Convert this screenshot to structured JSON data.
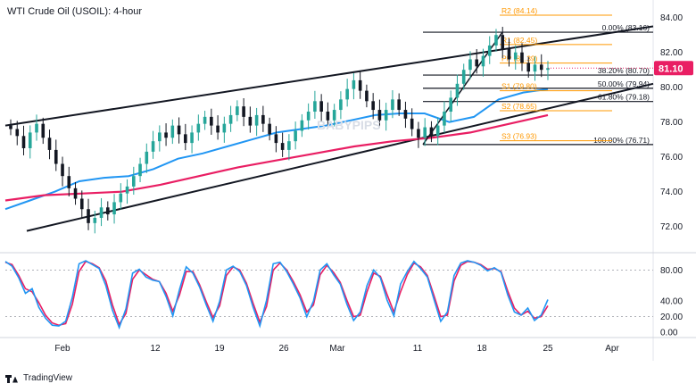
{
  "title": "WTI Crude Oil (USOIL): 4-hour",
  "branding": "TradingView",
  "watermark": "BABYPIPS",
  "colors": {
    "candle_up": "#26a69a",
    "candle_down": "#131722",
    "sma_blue": "#2196f3",
    "sma_magenta": "#e91e63",
    "pivot": "#ff9800",
    "fib": "#131722",
    "stoch_k": "#2196f3",
    "stoch_d": "#e91e63",
    "price_badge": "#e91e63"
  },
  "chart_data": [
    {
      "type": "candlestick",
      "panel": "price",
      "yaxis_ticks": [
        72.0,
        74.0,
        76.0,
        78.0,
        80.0,
        82.0,
        84.0
      ],
      "ylim": [
        70.55,
        84.6
      ],
      "xaxis_ticks": [
        "Feb",
        "12",
        "19",
        "26",
        "Mar",
        "11",
        "18",
        "25",
        "Apr"
      ],
      "last_price": "81.10",
      "candle_closes": [
        77.6,
        77.2,
        76.5,
        77.4,
        77.9,
        77.1,
        76.4,
        75.6,
        74.9,
        74.2,
        73.6,
        73.0,
        72.2,
        72.5,
        73.1,
        72.7,
        73.4,
        73.9,
        74.3,
        74.9,
        75.6,
        76.3,
        76.9,
        77.4,
        77.1,
        77.8,
        77.3,
        76.8,
        77.4,
        77.9,
        78.3,
        77.8,
        77.4,
        77.9,
        78.4,
        78.9,
        78.3,
        77.8,
        78.4,
        77.9,
        77.3,
        76.8,
        76.4,
        76.9,
        77.5,
        78.1,
        78.6,
        79.2,
        78.6,
        78.1,
        78.7,
        79.3,
        79.9,
        80.4,
        79.8,
        79.2,
        78.7,
        78.1,
        78.7,
        79.3,
        78.7,
        78.2,
        77.6,
        77.1,
        77.7,
        77.2,
        77.8,
        78.6,
        79.4,
        80.2,
        81.0,
        81.6,
        81.2,
        81.8,
        82.4,
        83.0,
        82.2,
        81.6,
        82.0,
        81.4,
        80.9,
        81.3,
        81.0,
        81.1
      ],
      "overlays": [
        {
          "name": "SMA blue",
          "values": [
            73.0,
            73.5,
            74.0,
            74.6,
            74.8,
            74.9,
            75.3,
            75.9,
            76.2,
            76.6,
            77.0,
            77.4,
            77.6,
            77.8,
            78.1,
            78.4,
            78.5,
            78.5,
            78.0,
            78.3,
            79.3,
            79.7,
            79.9
          ]
        },
        {
          "name": "SMA magenta",
          "values": [
            73.5,
            73.8,
            73.9,
            74.0,
            74.4,
            74.9,
            75.4,
            75.8,
            76.2,
            76.6,
            76.9,
            77.1,
            77.4,
            77.9,
            78.4
          ]
        }
      ],
      "pivot_levels": [
        {
          "label": "R2 (84.14)",
          "value": 84.14
        },
        {
          "label": "R1 (82.45)",
          "value": 82.45
        },
        {
          "label": "PP (81.39)",
          "value": 81.39
        },
        {
          "label": "S1 (79.80)",
          "value": 79.8
        },
        {
          "label": "S2 (78.65)",
          "value": 78.65
        },
        {
          "label": "S3 (76.93)",
          "value": 76.93
        }
      ],
      "fib_levels": [
        {
          "label": "0.00% (83.16)",
          "value": 83.16
        },
        {
          "label": "38.20% (80.70)",
          "value": 80.7
        },
        {
          "label": "50.00% (79.94)",
          "value": 79.94
        },
        {
          "label": "61.80% (79.18)",
          "value": 79.18
        },
        {
          "label": "100.00% (76.71)",
          "value": 76.71
        }
      ],
      "channel": {
        "upper": [
          [
            77.8,
            83.5
          ]
        ],
        "lower": [
          [
            71.75,
            80.2
          ]
        ]
      }
    },
    {
      "type": "line",
      "panel": "stochastic",
      "yaxis_ticks": [
        "80.00",
        "40.00",
        "20.00",
        "0.00"
      ],
      "ylim": [
        0,
        100
      ],
      "reference_lines": [
        80,
        20
      ],
      "series": [
        {
          "name": "%K",
          "values": [
            91,
            85,
            70,
            50,
            56,
            32,
            18,
            9,
            8,
            14,
            45,
            88,
            92,
            87,
            82,
            60,
            28,
            6,
            30,
            76,
            81,
            71,
            67,
            65,
            46,
            21,
            55,
            84,
            76,
            58,
            35,
            14,
            40,
            80,
            85,
            78,
            60,
            32,
            8,
            41,
            88,
            90,
            78,
            62,
            44,
            20,
            40,
            80,
            88,
            74,
            62,
            36,
            15,
            26,
            60,
            80,
            70,
            41,
            21,
            62,
            78,
            91,
            82,
            71,
            42,
            14,
            26,
            73,
            89,
            92,
            90,
            86,
            79,
            83,
            77,
            48,
            26,
            22,
            31,
            15,
            22,
            42
          ]
        },
        {
          "name": "%D",
          "values": [
            90,
            87,
            73,
            56,
            52,
            38,
            22,
            12,
            9,
            11,
            36,
            78,
            91,
            88,
            83,
            66,
            35,
            10,
            24,
            68,
            80,
            74,
            68,
            65,
            50,
            27,
            48,
            78,
            78,
            61,
            39,
            19,
            34,
            73,
            84,
            80,
            63,
            37,
            13,
            33,
            80,
            89,
            80,
            65,
            48,
            26,
            35,
            74,
            86,
            77,
            64,
            41,
            20,
            22,
            52,
            76,
            72,
            48,
            26,
            52,
            74,
            89,
            84,
            73,
            47,
            20,
            22,
            66,
            86,
            91,
            90,
            87,
            81,
            82,
            78,
            53,
            31,
            22,
            27,
            18,
            20,
            34
          ]
        }
      ]
    }
  ]
}
